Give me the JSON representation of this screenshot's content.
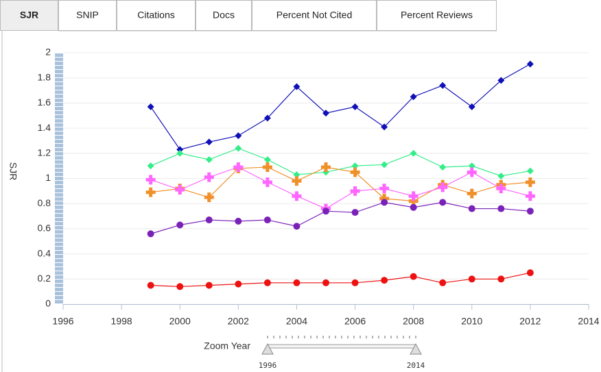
{
  "tabs": [
    "SJR",
    "SNIP",
    "Citations",
    "Docs",
    "Percent Not Cited",
    "Percent Reviews"
  ],
  "active_tab": 0,
  "chart_data": {
    "type": "line",
    "ylabel": "SJR",
    "x": [
      1999,
      2000,
      2001,
      2002,
      2003,
      2004,
      2005,
      2006,
      2007,
      2008,
      2009,
      2010,
      2011,
      2012
    ],
    "xlim": [
      1996,
      2014
    ],
    "xticks": [
      1996,
      1998,
      2000,
      2002,
      2004,
      2006,
      2008,
      2010,
      2012,
      2014
    ],
    "ylim": [
      0,
      2
    ],
    "yticks": [
      0,
      0.2,
      0.4,
      0.6,
      0.8,
      1,
      1.2,
      1.4,
      1.6,
      1.8,
      2
    ],
    "grid": true,
    "series": [
      {
        "color": "#1010b8",
        "marker": "diamond",
        "values": [
          1.57,
          1.23,
          1.29,
          1.34,
          1.48,
          1.73,
          1.52,
          1.57,
          1.41,
          1.65,
          1.74,
          1.57,
          1.78,
          1.91
        ]
      },
      {
        "color": "#33ee88",
        "marker": "diamond",
        "values": [
          1.1,
          1.2,
          1.15,
          1.24,
          1.15,
          1.03,
          1.05,
          1.1,
          1.11,
          1.2,
          1.09,
          1.1,
          1.02,
          1.06
        ]
      },
      {
        "color": "#f0902a",
        "marker": "cross",
        "values": [
          0.89,
          0.92,
          0.85,
          1.08,
          1.09,
          0.98,
          1.09,
          1.05,
          0.84,
          0.82,
          0.95,
          0.88,
          0.95,
          0.97
        ]
      },
      {
        "color": "#ff66ff",
        "marker": "cross",
        "values": [
          0.99,
          0.91,
          1.01,
          1.09,
          0.97,
          0.86,
          0.76,
          0.9,
          0.92,
          0.86,
          0.93,
          1.05,
          0.92,
          0.86
        ]
      },
      {
        "color": "#7a22b8",
        "marker": "circle",
        "values": [
          0.56,
          0.63,
          0.67,
          0.66,
          0.67,
          0.62,
          0.74,
          0.73,
          0.81,
          0.77,
          0.81,
          0.76,
          0.76,
          0.74
        ]
      },
      {
        "color": "#ee1111",
        "marker": "circle",
        "values": [
          0.15,
          0.14,
          0.15,
          0.16,
          0.17,
          0.17,
          0.17,
          0.17,
          0.19,
          0.22,
          0.17,
          0.2,
          0.2,
          0.25
        ]
      }
    ]
  },
  "zoom": {
    "label": "Zoom Year",
    "range": [
      1996,
      2014
    ]
  }
}
